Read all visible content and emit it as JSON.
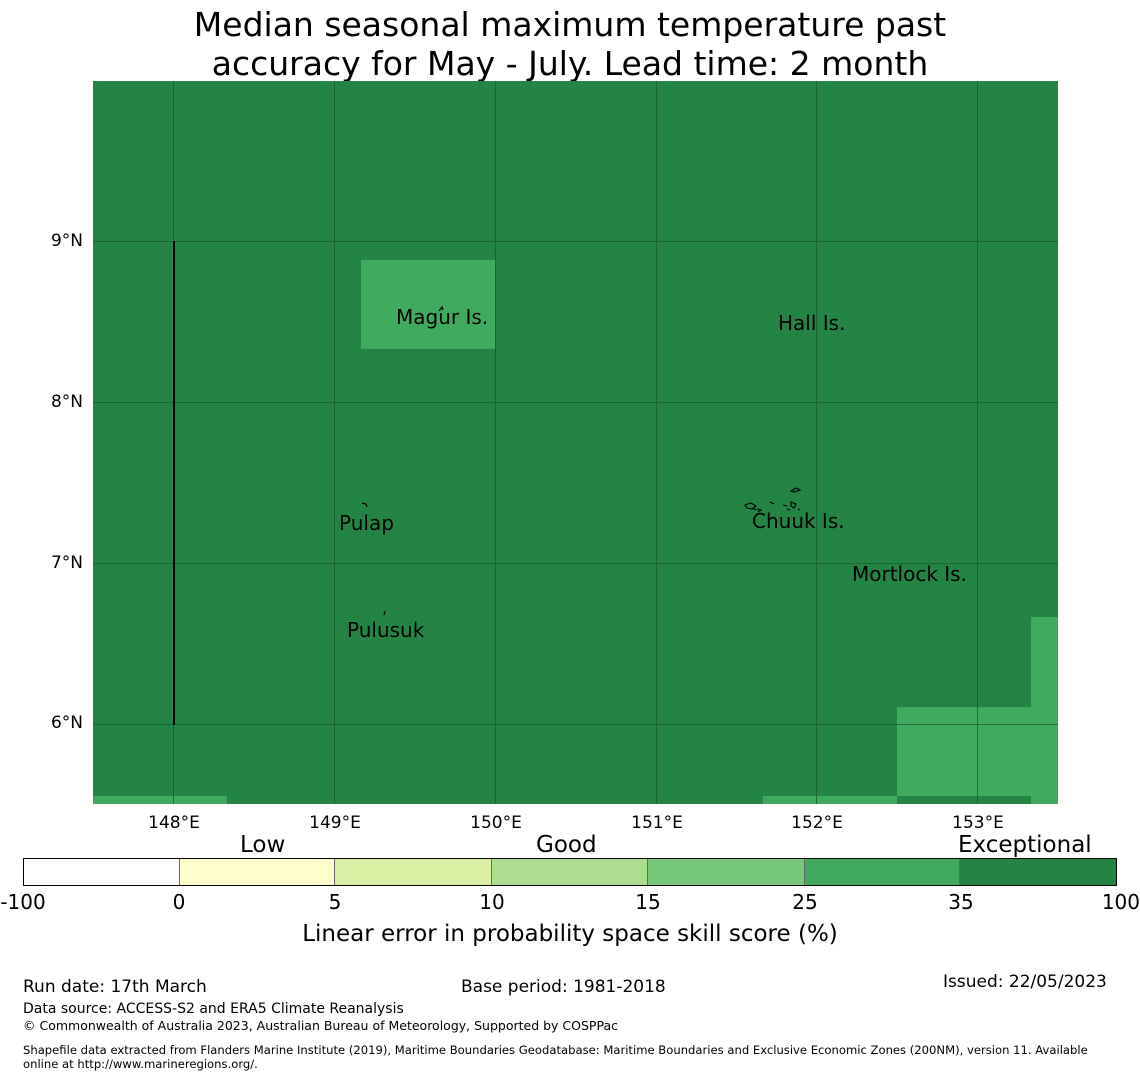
{
  "title_line1": "Median seasonal maximum temperature past",
  "title_line2": "accuracy for May - July. Lead time: 2 month",
  "map": {
    "background_color": "#238443",
    "cell_colors": {
      "good_high": "#41ab5d",
      "exceptional": "#238443"
    },
    "lat_labels": [
      "9°N",
      "8°N",
      "7°N",
      "6°N"
    ],
    "lon_labels": [
      "148°E",
      "149°E",
      "150°E",
      "151°E",
      "152°E",
      "153°E"
    ],
    "places": [
      "Magur Is.",
      "Hall Is.",
      "Pulap",
      "Chuuk Is.",
      "Mortlock Is.",
      "Pulusuk"
    ]
  },
  "colorbar": {
    "categories": [
      "Low",
      "Good",
      "Exceptional"
    ],
    "ticks": [
      "-100",
      "0",
      "5",
      "10",
      "15",
      "25",
      "35",
      "100"
    ],
    "colors": [
      "#ffffff",
      "#ffffcc",
      "#d9f0a3",
      "#addd8e",
      "#78c679",
      "#41ab5d",
      "#238443"
    ],
    "label": "Linear error in probability space skill score (%)"
  },
  "footer": {
    "run_date": "Run date: 17th March",
    "base_period": "Base period: 1981-2018",
    "issued": "Issued: 22/05/2023",
    "data_source": "Data source: ACCESS-S2 and ERA5 Climate Reanalysis",
    "copyright": "© Commonwealth of Australia 2023, Australian Bureau of Meteorology, Supported by COSPPac",
    "shapefile_line1": "Shapefile data extracted from Flanders Marine Institute (2019), Maritime Boundaries Geodatabase: Maritime Boundaries and Exclusive Economic Zones (200NM), version 11. Available",
    "shapefile_line2": "online at http://www.marineregions.org/."
  }
}
